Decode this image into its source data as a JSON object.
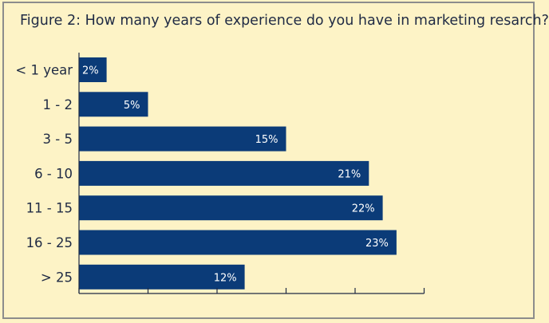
{
  "chart_data": {
    "type": "bar",
    "orientation": "horizontal",
    "title": "Figure 2: How many years of experience do you have in marketing resarch?",
    "categories": [
      "< 1 year",
      "1 - 2",
      "3 - 5",
      "6 - 10",
      "11 - 15",
      "16 - 25",
      "> 25"
    ],
    "values": [
      2,
      5,
      15,
      21,
      22,
      23,
      12
    ],
    "value_labels": [
      "2%",
      "5%",
      "15%",
      "21%",
      "22%",
      "23%",
      "12%"
    ],
    "xlabel": "",
    "ylabel": "",
    "xlim": [
      0,
      25
    ],
    "grid": false,
    "colors": {
      "bar": "#0b3b78",
      "background": "#fdf3c6",
      "border": "#8c8c8c",
      "axis": "#1f2a44"
    }
  }
}
